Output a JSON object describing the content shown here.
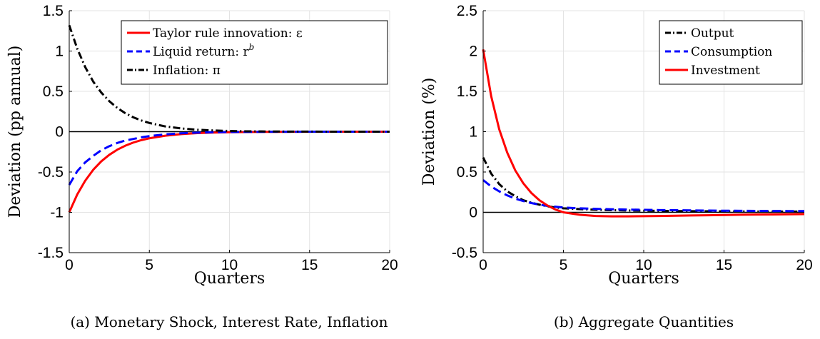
{
  "chart_data": [
    {
      "type": "line",
      "caption": "(a) Monetary Shock, Interest Rate, Inflation",
      "xlabel": "Quarters",
      "ylabel": "Deviation (pp annual)",
      "xlim": [
        0,
        20
      ],
      "ylim": [
        -1.5,
        1.5
      ],
      "xticks": [
        0,
        5,
        10,
        15,
        20
      ],
      "yticks": [
        -1.5,
        -1,
        -0.5,
        0,
        0.5,
        1,
        1.5
      ],
      "ytick_labels": [
        "-1.5",
        "-1",
        "-0.5",
        "0",
        "0.5",
        "1",
        "1.5"
      ],
      "grid": true,
      "zero_line": true,
      "legend_position": "top-right",
      "x": [
        0,
        0.5,
        1,
        1.5,
        2,
        2.5,
        3,
        3.5,
        4,
        4.5,
        5,
        6,
        7,
        8,
        9,
        10,
        11,
        12,
        13,
        14,
        15,
        16,
        17,
        18,
        19,
        20
      ],
      "series": [
        {
          "name": "Taylor rule innovation: ε",
          "color": "#ff0000",
          "dash": "solid",
          "values": [
            -1.0,
            -0.779,
            -0.607,
            -0.472,
            -0.368,
            -0.287,
            -0.223,
            -0.174,
            -0.135,
            -0.105,
            -0.082,
            -0.05,
            -0.03,
            -0.018,
            -0.011,
            -0.007,
            -0.004,
            -0.002,
            -0.002,
            -0.001,
            -0.001,
            0,
            0,
            0,
            0,
            0
          ]
        },
        {
          "name": "Liquid return: r",
          "name_superscript": "b",
          "color": "#0000ff",
          "dash": "dash",
          "values": [
            -0.66,
            -0.49,
            -0.38,
            -0.3,
            -0.23,
            -0.18,
            -0.14,
            -0.11,
            -0.09,
            -0.07,
            -0.055,
            -0.033,
            -0.02,
            -0.012,
            -0.007,
            -0.004,
            -0.003,
            -0.002,
            -0.001,
            -0.001,
            0,
            0,
            0,
            0,
            0,
            0
          ]
        },
        {
          "name": "Inflation: π",
          "color": "#000000",
          "dash": "dashdot",
          "values": [
            1.32,
            1.03,
            0.8,
            0.62,
            0.485,
            0.378,
            0.294,
            0.229,
            0.178,
            0.139,
            0.108,
            0.065,
            0.04,
            0.024,
            0.015,
            0.009,
            0.005,
            0.003,
            0.002,
            0.001,
            0.001,
            0,
            0,
            0,
            0,
            0
          ]
        }
      ]
    },
    {
      "type": "line",
      "caption": "(b) Aggregate Quantities",
      "xlabel": "Quarters",
      "ylabel": "Deviation (%)",
      "xlim": [
        0,
        20
      ],
      "ylim": [
        -0.5,
        2.5
      ],
      "xticks": [
        0,
        5,
        10,
        15,
        20
      ],
      "yticks": [
        -0.5,
        0,
        0.5,
        1,
        1.5,
        2,
        2.5
      ],
      "ytick_labels": [
        "-0.5",
        "0",
        "0.5",
        "1",
        "1.5",
        "2",
        "2.5"
      ],
      "grid": true,
      "zero_line": true,
      "legend_position": "top-right",
      "x": [
        0,
        0.5,
        1,
        1.5,
        2,
        2.5,
        3,
        3.5,
        4,
        4.5,
        5,
        6,
        7,
        8,
        9,
        10,
        11,
        12,
        13,
        14,
        15,
        16,
        17,
        18,
        19,
        20
      ],
      "series": [
        {
          "name": "Output",
          "color": "#000000",
          "dash": "dashdot",
          "values": [
            0.68,
            0.48,
            0.35,
            0.26,
            0.2,
            0.15,
            0.12,
            0.095,
            0.075,
            0.06,
            0.05,
            0.04,
            0.032,
            0.027,
            0.023,
            0.02,
            0.018,
            0.016,
            0.014,
            0.013,
            0.012,
            0.011,
            0.01,
            0.01,
            0.009,
            0.009
          ]
        },
        {
          "name": "Consumption",
          "color": "#0000ff",
          "dash": "dash",
          "values": [
            0.4,
            0.32,
            0.26,
            0.21,
            0.17,
            0.14,
            0.115,
            0.095,
            0.08,
            0.07,
            0.06,
            0.05,
            0.043,
            0.038,
            0.034,
            0.031,
            0.028,
            0.026,
            0.024,
            0.022,
            0.02,
            0.019,
            0.018,
            0.017,
            0.016,
            0.015
          ]
        },
        {
          "name": "Investment",
          "color": "#ff0000",
          "dash": "solid",
          "values": [
            2.02,
            1.44,
            1.03,
            0.74,
            0.52,
            0.36,
            0.24,
            0.15,
            0.085,
            0.035,
            0.0,
            -0.03,
            -0.045,
            -0.05,
            -0.05,
            -0.048,
            -0.045,
            -0.042,
            -0.039,
            -0.036,
            -0.033,
            -0.03,
            -0.028,
            -0.026,
            -0.024,
            -0.022
          ]
        }
      ]
    }
  ]
}
